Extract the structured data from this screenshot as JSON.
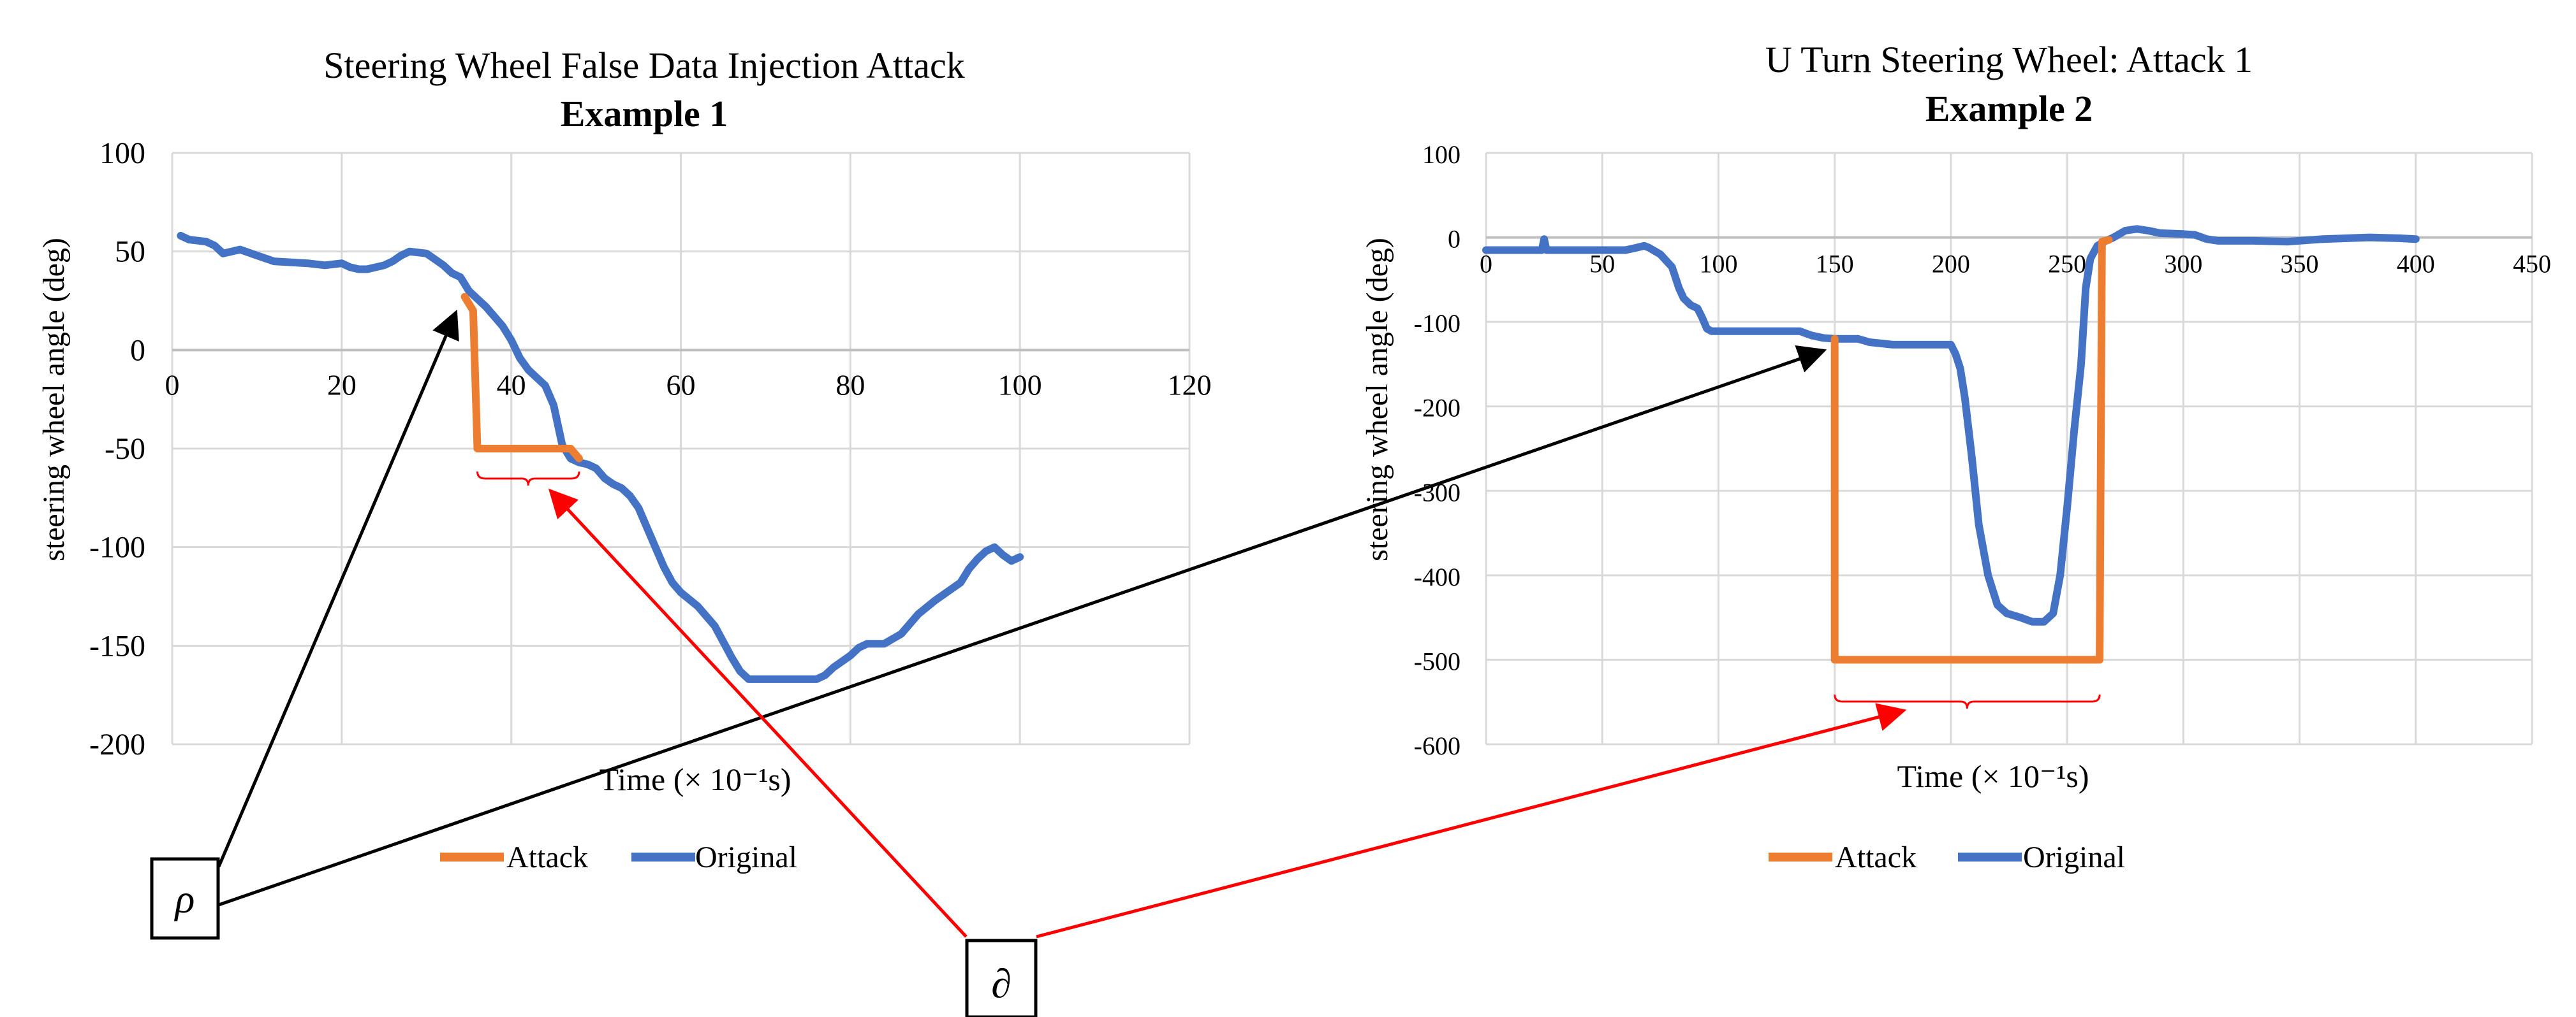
{
  "colors": {
    "attack": "#ED7D31",
    "original": "#4472C4",
    "grid": "#D9D9D9",
    "annotation_red": "#FF0000",
    "annotation_black": "#000000"
  },
  "annotations": {
    "rho": "ρ",
    "partial": "∂"
  },
  "chart_data": [
    {
      "type": "line",
      "title": "Steering Wheel False Data Injection Attack",
      "subtitle": "Example 1",
      "xlabel": "Time (× 10⁻¹s)",
      "ylabel": "steering wheel angle (deg)",
      "xlim": [
        0,
        120
      ],
      "ylim": [
        -200,
        100
      ],
      "xticks": [
        0,
        20,
        40,
        60,
        80,
        100,
        120
      ],
      "yticks": [
        100,
        50,
        0,
        -50,
        -100,
        -150,
        -200
      ],
      "x_axis_at_y": 0,
      "grid": true,
      "legend_position": "bottom",
      "series": [
        {
          "name": "Attack",
          "color": "#ED7D31",
          "points": [
            [
              34.5,
              27
            ],
            [
              35.5,
              20
            ],
            [
              36,
              -50
            ],
            [
              47,
              -50
            ],
            [
              48,
              -55
            ]
          ]
        },
        {
          "name": "Original",
          "color": "#4472C4",
          "points": [
            [
              1,
              58
            ],
            [
              2,
              56
            ],
            [
              4,
              55
            ],
            [
              5,
              53
            ],
            [
              6,
              49
            ],
            [
              8,
              51
            ],
            [
              10,
              48
            ],
            [
              12,
              45
            ],
            [
              16,
              44
            ],
            [
              18,
              43
            ],
            [
              20,
              44
            ],
            [
              21,
              42
            ],
            [
              22,
              41
            ],
            [
              23,
              41
            ],
            [
              25,
              43
            ],
            [
              26,
              45
            ],
            [
              27,
              48
            ],
            [
              28,
              50
            ],
            [
              30,
              49
            ],
            [
              31,
              46
            ],
            [
              32,
              43
            ],
            [
              33,
              39
            ],
            [
              34,
              37
            ],
            [
              35,
              30
            ],
            [
              37,
              22
            ],
            [
              38,
              17
            ],
            [
              39,
              12
            ],
            [
              40,
              5
            ],
            [
              41,
              -4
            ],
            [
              42,
              -10
            ],
            [
              43,
              -14
            ],
            [
              44,
              -18
            ],
            [
              45,
              -28
            ],
            [
              46,
              -48
            ],
            [
              47,
              -55
            ],
            [
              48,
              -57
            ],
            [
              49,
              -58
            ],
            [
              50,
              -60
            ],
            [
              51,
              -65
            ],
            [
              52,
              -68
            ],
            [
              53,
              -70
            ],
            [
              54,
              -74
            ],
            [
              55,
              -80
            ],
            [
              56,
              -90
            ],
            [
              57,
              -100
            ],
            [
              58,
              -110
            ],
            [
              59,
              -118
            ],
            [
              60,
              -123
            ],
            [
              62,
              -130
            ],
            [
              63,
              -135
            ],
            [
              64,
              -140
            ],
            [
              65,
              -148
            ],
            [
              66,
              -156
            ],
            [
              67,
              -163
            ],
            [
              68,
              -167
            ],
            [
              70,
              -167
            ],
            [
              76,
              -167
            ],
            [
              77,
              -165
            ],
            [
              78,
              -161
            ],
            [
              80,
              -155
            ],
            [
              81,
              -151
            ],
            [
              82,
              -149
            ],
            [
              84,
              -149
            ],
            [
              86,
              -144
            ],
            [
              88,
              -134
            ],
            [
              90,
              -127
            ],
            [
              92,
              -121
            ],
            [
              93,
              -118
            ],
            [
              94,
              -111
            ],
            [
              95,
              -106
            ],
            [
              96,
              -102
            ],
            [
              97,
              -100
            ],
            [
              98,
              -104
            ],
            [
              99,
              -107
            ],
            [
              100,
              -105
            ]
          ]
        }
      ],
      "brace_range": [
        36,
        48
      ]
    },
    {
      "type": "line",
      "title": "U Turn Steering Wheel: Attack 1",
      "subtitle": "Example 2",
      "xlabel": "Time (× 10⁻¹s)",
      "ylabel": "steering wheel angle (deg)",
      "xlim": [
        0,
        450
      ],
      "ylim": [
        -600,
        100
      ],
      "xticks": [
        0,
        50,
        100,
        150,
        200,
        250,
        300,
        350,
        400,
        450
      ],
      "yticks": [
        100,
        0,
        -100,
        -200,
        -300,
        -400,
        -500,
        -600
      ],
      "x_axis_at_y": 0,
      "grid": true,
      "legend_position": "bottom",
      "series": [
        {
          "name": "Attack",
          "color": "#ED7D31",
          "points": [
            [
              150,
              -120
            ],
            [
              150,
              -500
            ],
            [
              264,
              -500
            ],
            [
              265,
              -5
            ],
            [
              268,
              -3
            ]
          ]
        },
        {
          "name": "Original",
          "color": "#4472C4",
          "points": [
            [
              0,
              -15
            ],
            [
              24,
              -15
            ],
            [
              25,
              -2
            ],
            [
              26,
              -15
            ],
            [
              60,
              -15
            ],
            [
              65,
              -12
            ],
            [
              68,
              -10
            ],
            [
              70,
              -12
            ],
            [
              75,
              -20
            ],
            [
              80,
              -35
            ],
            [
              83,
              -60
            ],
            [
              85,
              -72
            ],
            [
              88,
              -80
            ],
            [
              91,
              -84
            ],
            [
              93,
              -95
            ],
            [
              95,
              -108
            ],
            [
              97,
              -111
            ],
            [
              100,
              -111
            ],
            [
              135,
              -111
            ],
            [
              140,
              -116
            ],
            [
              145,
              -119
            ],
            [
              150,
              -120
            ],
            [
              160,
              -120
            ],
            [
              165,
              -124
            ],
            [
              175,
              -127
            ],
            [
              200,
              -127
            ],
            [
              202,
              -138
            ],
            [
              204,
              -155
            ],
            [
              206,
              -190
            ],
            [
              209,
              -260
            ],
            [
              212,
              -340
            ],
            [
              216,
              -400
            ],
            [
              220,
              -435
            ],
            [
              224,
              -445
            ],
            [
              230,
              -450
            ],
            [
              235,
              -455
            ],
            [
              240,
              -455
            ],
            [
              244,
              -445
            ],
            [
              247,
              -400
            ],
            [
              250,
              -320
            ],
            [
              253,
              -230
            ],
            [
              256,
              -150
            ],
            [
              258,
              -60
            ],
            [
              260,
              -25
            ],
            [
              263,
              -10
            ],
            [
              266,
              -5
            ],
            [
              270,
              0
            ],
            [
              275,
              8
            ],
            [
              280,
              10
            ],
            [
              285,
              8
            ],
            [
              290,
              5
            ],
            [
              300,
              4
            ],
            [
              305,
              3
            ],
            [
              310,
              -2
            ],
            [
              315,
              -4
            ],
            [
              330,
              -4
            ],
            [
              345,
              -5
            ],
            [
              360,
              -2
            ],
            [
              380,
              0
            ],
            [
              393,
              -1
            ],
            [
              400,
              -2
            ]
          ]
        }
      ],
      "brace_range": [
        150,
        264
      ]
    }
  ]
}
